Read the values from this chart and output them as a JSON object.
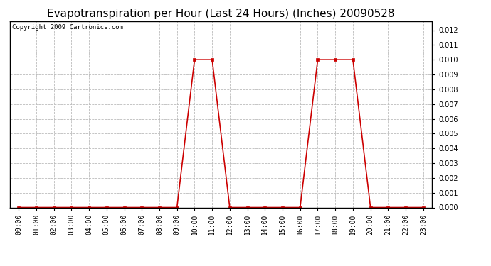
{
  "title": "Evapotranspiration per Hour (Last 24 Hours) (Inches) 20090528",
  "copyright_text": "Copyright 2009 Cartronics.com",
  "hours": [
    0,
    1,
    2,
    3,
    4,
    5,
    6,
    7,
    8,
    9,
    10,
    11,
    12,
    13,
    14,
    15,
    16,
    17,
    18,
    19,
    20,
    21,
    22,
    23
  ],
  "values": [
    0.0,
    0.0,
    0.0,
    0.0,
    0.0,
    0.0,
    0.0,
    0.0,
    0.0,
    0.0,
    0.01,
    0.01,
    0.0,
    0.0,
    0.0,
    0.0,
    0.0,
    0.01,
    0.01,
    0.01,
    0.0,
    0.0,
    0.0,
    0.0
  ],
  "line_color": "#cc0000",
  "marker": "s",
  "marker_size": 3,
  "ylim": [
    0,
    0.0126
  ],
  "yticks": [
    0.0,
    0.001,
    0.002,
    0.003,
    0.004,
    0.005,
    0.006,
    0.007,
    0.008,
    0.009,
    0.01,
    0.011,
    0.012
  ],
  "background_color": "#ffffff",
  "plot_bg_color": "#ffffff",
  "grid_color": "#bbbbbb",
  "title_fontsize": 11,
  "tick_label_fontsize": 7,
  "copyright_fontsize": 6.5
}
